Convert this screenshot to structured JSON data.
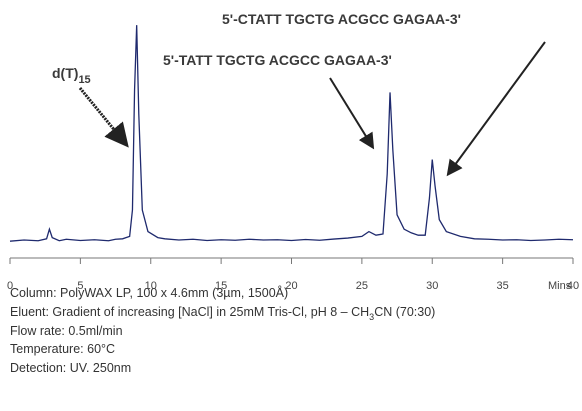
{
  "chart_data": {
    "type": "line",
    "x": [
      0,
      1,
      2,
      2.6,
      2.8,
      3,
      3.5,
      4,
      5,
      6,
      7,
      7.5,
      8,
      8.5,
      8.7,
      8.85,
      9,
      9.15,
      9.4,
      9.8,
      10.5,
      11,
      12,
      13,
      14,
      15,
      16,
      17,
      18,
      19,
      20,
      21,
      22,
      23,
      24,
      25,
      25.5,
      26,
      26.5,
      26.8,
      27,
      27.2,
      27.5,
      28,
      28.5,
      29,
      29.5,
      29.8,
      30,
      30.2,
      30.5,
      31,
      32,
      33,
      34,
      35,
      36,
      37,
      38,
      39,
      40
    ],
    "series": [
      {
        "color": "#1f2a6e",
        "values": [
          7,
          7.5,
          7.2,
          8,
          12,
          8.5,
          7.2,
          7.8,
          7.3,
          7.6,
          7.2,
          7.8,
          8,
          9,
          20,
          70,
          97,
          60,
          20,
          11,
          8.5,
          8,
          7.5,
          7.8,
          7.3,
          7.6,
          7.4,
          7.8,
          7.5,
          7.6,
          7.3,
          7.7,
          7.4,
          7.9,
          8.3,
          9,
          11,
          9.5,
          10,
          35,
          69,
          45,
          18,
          12,
          10.5,
          9.5,
          9.5,
          25,
          41,
          30,
          16,
          11,
          9,
          8,
          7.8,
          7.5,
          7.6,
          7.3,
          7.5,
          7.8,
          7.6
        ]
      }
    ],
    "xlim": [
      0,
      40
    ],
    "xticks": [
      0,
      5,
      10,
      15,
      20,
      25,
      30,
      35,
      40
    ],
    "xlabel": "Mins",
    "ylim": [
      0,
      100
    ],
    "annotations": [
      {
        "text": "d(T)",
        "subscript": "15"
      },
      {
        "text": "5'-TATT TGCTG ACGCC GAGAA-3'"
      },
      {
        "text": "5'-CTATT TGCTG ACGCC GAGAA-3'"
      }
    ],
    "notes": [
      "Column: PolyWAX LP, 100 x 4.6mm (3µm, 1500Å)",
      {
        "before": "Eluent: Gradient of increasing [NaCl] in 25mM Tris-Cl, pH 8 – CH",
        "subscript": "3",
        "after": "CN (70:30)"
      },
      "Flow rate: 0.5ml/min",
      "Temperature: 60°C",
      "Detection: UV. 250nm"
    ]
  }
}
